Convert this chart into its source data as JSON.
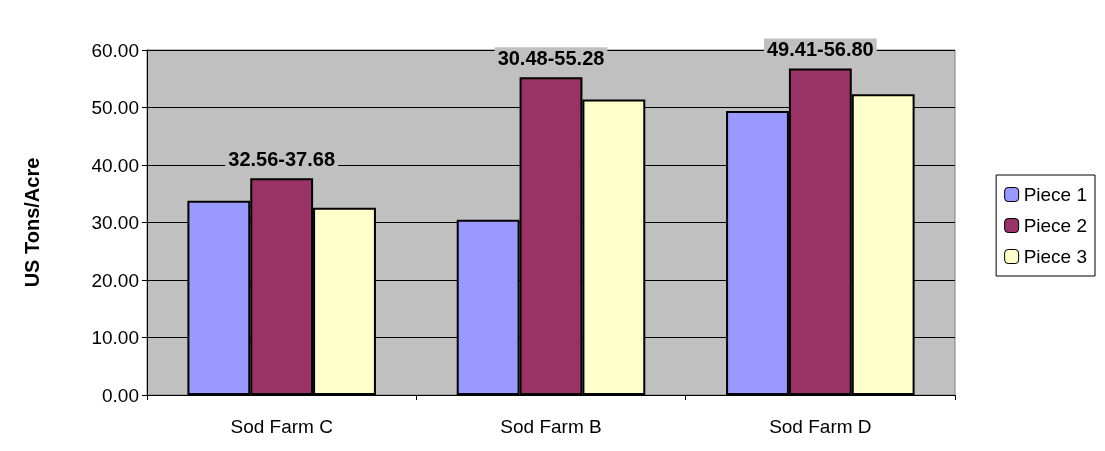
{
  "chart_data": {
    "type": "bar",
    "ylabel": "US Tons/Acre",
    "categories": [
      "Sod Farm C",
      "Sod Farm B",
      "Sod Farm D"
    ],
    "series": [
      {
        "name": "Piece 1",
        "color": "#9999ff",
        "values": [
          33.8,
          30.48,
          49.41
        ]
      },
      {
        "name": "Piece 2",
        "color": "#993366",
        "values": [
          37.68,
          55.28,
          56.8
        ]
      },
      {
        "name": "Piece 3",
        "color": "#ffffcc",
        "values": [
          32.56,
          51.4,
          52.3
        ]
      }
    ],
    "ylim": [
      0,
      60
    ],
    "yticks": [
      {
        "value": 0,
        "label": "0.00"
      },
      {
        "value": 10,
        "label": "10.00"
      },
      {
        "value": 20,
        "label": "20.00"
      },
      {
        "value": 30,
        "label": "30.00"
      },
      {
        "value": 40,
        "label": "40.00"
      },
      {
        "value": 50,
        "label": "50.00"
      },
      {
        "value": 60,
        "label": "60.00"
      }
    ],
    "annotations": [
      {
        "text": "32.56-37.68",
        "x": "Sod Farm C",
        "y": 37.68
      },
      {
        "text": "30.48-55.28",
        "x": "Sod Farm B",
        "y": 55.28
      },
      {
        "text": "49.41-56.80",
        "x": "Sod Farm D",
        "y": 56.8
      }
    ],
    "grid": "y",
    "legend": "right"
  }
}
